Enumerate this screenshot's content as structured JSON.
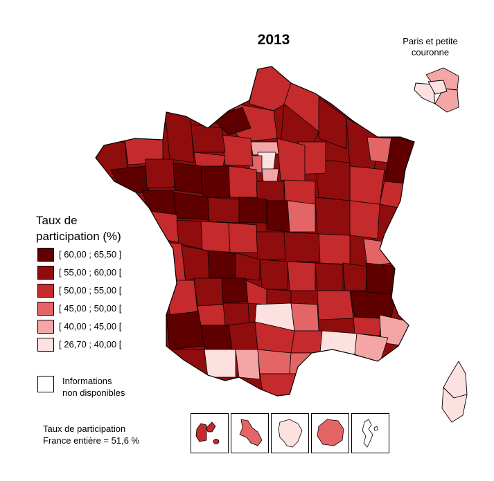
{
  "title": "2013",
  "inset": {
    "title_line1": "Paris et petite",
    "title_line2": "couronne"
  },
  "legend": {
    "title_line1": "Taux de",
    "title_line2": "participation (%)",
    "classes": [
      {
        "label": "[ 60,00 ; 65,50 ]",
        "color": "#5e0000"
      },
      {
        "label": "[ 55,00 ; 60,00 [",
        "color": "#900d0e"
      },
      {
        "label": "[ 50,00 ; 55,00 [",
        "color": "#c52a2c"
      },
      {
        "label": "[ 45,00 ; 50,00 [",
        "color": "#e46566"
      },
      {
        "label": "[ 40,00 ; 45,00 [",
        "color": "#f4a6a7"
      },
      {
        "label": "[ 26,70 ; 40,00 [",
        "color": "#fde0e0"
      }
    ],
    "na_line1": "Informations",
    "na_line2": "non disponibles"
  },
  "national": {
    "line1": "Taux de participation",
    "line2": "France entière = 51,6 %"
  },
  "overseas_icons": [
    "guadeloupe-icon",
    "martinique-icon",
    "guyane-icon",
    "reunion-icon",
    "mayotte-icon"
  ]
}
